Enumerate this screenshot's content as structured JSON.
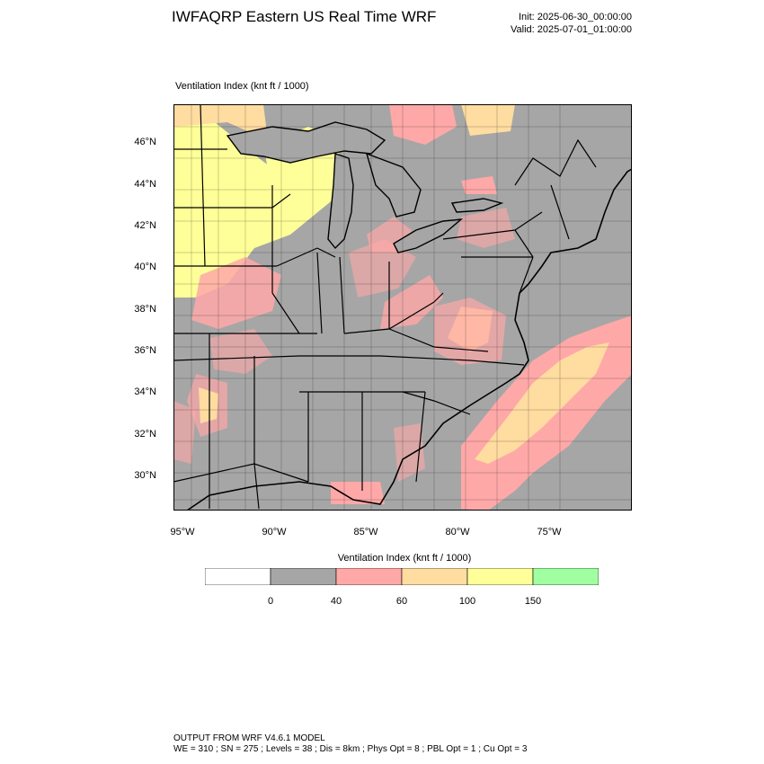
{
  "header": {
    "title": "IWFAQRP Eastern US Real Time WRF",
    "init": "Init: 2025-06-30_00:00:00",
    "valid": "Valid: 2025-07-01_01:00:00"
  },
  "map": {
    "field_title": "Ventilation Index   (knt ft / 1000)",
    "lat_labels": [
      "46°N",
      "44°N",
      "42°N",
      "40°N",
      "38°N",
      "36°N",
      "34°N",
      "32°N",
      "30°N"
    ],
    "lon_labels": [
      "95°W",
      "90°W",
      "85°W",
      "80°W",
      "75°W"
    ],
    "colors": {
      "land": "#a6a6a6",
      "water": "#a6a6a6",
      "lt_40": "#a6a6a6",
      "40_60": "#ffa8a8",
      "60_100": "#ffdca0",
      "100_150": "#ffff99",
      "gt_150": "#a0ffa0",
      "boundary": "#000000"
    }
  },
  "legend": {
    "title": "Ventilation Index  (knt ft / 1000)",
    "tick_labels": [
      "0",
      "40",
      "60",
      "100",
      "150"
    ],
    "bins": [
      {
        "range": "<0",
        "color": "#ffffff"
      },
      {
        "range": "0-40",
        "color": "#a6a6a6"
      },
      {
        "range": "40-60",
        "color": "#ffa8a8"
      },
      {
        "range": "60-100",
        "color": "#ffdca0"
      },
      {
        "range": "100-150",
        "color": "#ffff99"
      },
      {
        "range": ">150",
        "color": "#a0ffa0"
      }
    ]
  },
  "footer": {
    "line1": "OUTPUT FROM WRF V4.6.1 MODEL",
    "line2": "WE = 310 ; SN = 275 ; Levels = 38 ; Dis = 8km ; Phys Opt = 8 ; PBL Opt = 1 ; Cu Opt = 3"
  }
}
